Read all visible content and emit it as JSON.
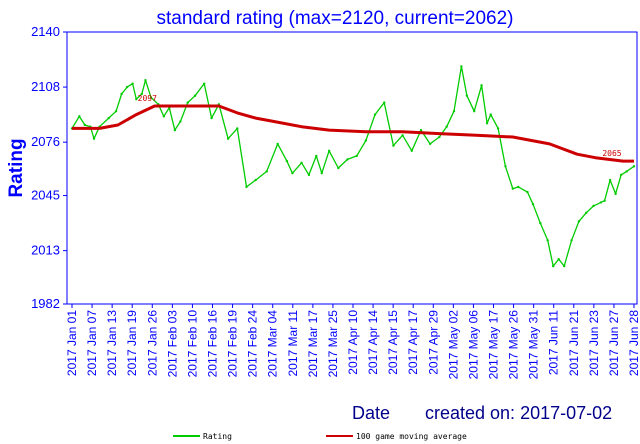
{
  "chart_data": {
    "type": "line",
    "title": "standard rating (max=2120, current=2062)",
    "ylabel": "Rating",
    "xlabel": "Date",
    "created": "created on: 2017-07-02",
    "ylim": [
      1982,
      2140
    ],
    "y_ticks": [
      "2140",
      "2108",
      "2076",
      "2045",
      "2013",
      "1982"
    ],
    "categories": [
      "2017 Jan 01",
      "2017 Jan 07",
      "2017 Jan 13",
      "2017 Jan 19",
      "2017 Jan 26",
      "2017 Feb 03",
      "2017 Feb 10",
      "2017 Feb 16",
      "2017 Feb 19",
      "2017 Feb 24",
      "2017 Mar 04",
      "2017 Mar 11",
      "2017 Mar 17",
      "2017 Mar 25",
      "2017 Apr 10",
      "2017 Apr 14",
      "2017 Apr 15",
      "2017 Apr 17",
      "2017 Apr 29",
      "2017 May 02",
      "2017 May 06",
      "2017 May 17",
      "2017 May 26",
      "2017 May 31",
      "2017 Jun 11",
      "2017 Jun 21",
      "2017 Jun 23",
      "2017 Jun 27",
      "2017 Jun 28"
    ],
    "grid": false,
    "legend_position": "bottom",
    "series": [
      {
        "name": "Rating",
        "color": "#00cc00",
        "values": [
          [
            0,
            2084
          ],
          [
            0.4,
            2091
          ],
          [
            0.7,
            2086
          ],
          [
            1.0,
            2085
          ],
          [
            1.2,
            2078
          ],
          [
            1.5,
            2085
          ],
          [
            2.0,
            2090
          ],
          [
            2.4,
            2094
          ],
          [
            2.7,
            2104
          ],
          [
            3.0,
            2108
          ],
          [
            3.3,
            2110
          ],
          [
            3.5,
            2101
          ],
          [
            3.8,
            2104
          ],
          [
            4.0,
            2112
          ],
          [
            4.3,
            2102
          ],
          [
            4.7,
            2098
          ],
          [
            5.0,
            2091
          ],
          [
            5.3,
            2096
          ],
          [
            5.6,
            2083
          ],
          [
            5.9,
            2088
          ],
          [
            6.3,
            2099
          ],
          [
            6.7,
            2103
          ],
          [
            7.2,
            2110
          ],
          [
            7.6,
            2090
          ],
          [
            8.0,
            2098
          ],
          [
            8.5,
            2078
          ],
          [
            9.0,
            2084
          ],
          [
            9.5,
            2050
          ],
          [
            10.0,
            2054
          ],
          [
            10.6,
            2059
          ],
          [
            11.2,
            2075
          ],
          [
            11.7,
            2065
          ],
          [
            12.0,
            2058
          ],
          [
            12.5,
            2064
          ],
          [
            12.9,
            2057
          ],
          [
            13.3,
            2068
          ],
          [
            13.6,
            2058
          ],
          [
            14.0,
            2071
          ],
          [
            14.5,
            2061
          ],
          [
            15.0,
            2066
          ],
          [
            15.5,
            2068
          ],
          [
            16.0,
            2077
          ],
          [
            16.5,
            2092
          ],
          [
            17.0,
            2099
          ],
          [
            17.5,
            2074
          ],
          [
            18.0,
            2080
          ],
          [
            18.5,
            2071
          ],
          [
            19.0,
            2083
          ],
          [
            19.5,
            2075
          ],
          [
            20.0,
            2079
          ],
          [
            20.4,
            2085
          ],
          [
            20.8,
            2094
          ],
          [
            21.2,
            2120
          ],
          [
            21.5,
            2103
          ],
          [
            21.9,
            2094
          ],
          [
            22.3,
            2109
          ],
          [
            22.6,
            2087
          ],
          [
            22.8,
            2092
          ],
          [
            23.2,
            2084
          ],
          [
            23.6,
            2062
          ],
          [
            24.0,
            2049
          ],
          [
            24.3,
            2050
          ],
          [
            24.8,
            2047
          ],
          [
            25.1,
            2040
          ],
          [
            25.5,
            2029
          ],
          [
            25.9,
            2019
          ],
          [
            26.2,
            2004
          ],
          [
            26.5,
            2008
          ],
          [
            26.8,
            2004
          ],
          [
            27.2,
            2019
          ],
          [
            27.6,
            2030
          ],
          [
            28.0,
            2035
          ],
          [
            28.4,
            2039
          ],
          [
            28.8,
            2041
          ],
          [
            29.0,
            2042
          ],
          [
            29.3,
            2054
          ],
          [
            29.6,
            2046
          ],
          [
            29.9,
            2057
          ],
          [
            30.2,
            2059
          ],
          [
            30.6,
            2062
          ]
        ]
      },
      {
        "name": "100 game moving average",
        "color": "#cc0000",
        "values": [
          [
            0,
            2084
          ],
          [
            1.5,
            2084
          ],
          [
            2.5,
            2086
          ],
          [
            3.5,
            2092
          ],
          [
            4.5,
            2097
          ],
          [
            5.5,
            2097
          ],
          [
            7.0,
            2097
          ],
          [
            8.0,
            2097
          ],
          [
            9.0,
            2093
          ],
          [
            10.0,
            2090
          ],
          [
            11.0,
            2088
          ],
          [
            12.5,
            2085
          ],
          [
            14.0,
            2083
          ],
          [
            16.0,
            2082
          ],
          [
            18.0,
            2082
          ],
          [
            20.0,
            2081
          ],
          [
            22.0,
            2080
          ],
          [
            24.0,
            2079
          ],
          [
            26.0,
            2075
          ],
          [
            27.5,
            2069
          ],
          [
            28.5,
            2067
          ],
          [
            30.0,
            2065
          ],
          [
            30.6,
            2065
          ]
        ]
      }
    ],
    "annotations": [
      {
        "text": "2097",
        "series": 1,
        "x": 4.1,
        "y": 2097
      },
      {
        "text": "2065",
        "series": 1,
        "x": 29.4,
        "y": 2065
      }
    ]
  }
}
